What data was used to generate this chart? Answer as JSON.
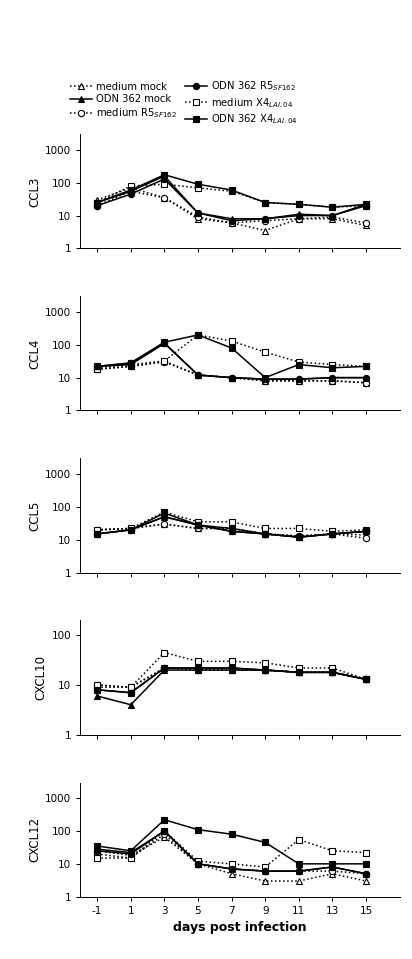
{
  "x": [
    -1,
    1,
    3,
    5,
    7,
    9,
    11,
    13,
    15
  ],
  "panels": [
    {
      "ylabel": "CCL3",
      "ylim": [
        1,
        3000
      ],
      "yticks": [
        1,
        10,
        100,
        1000
      ],
      "series": [
        {
          "linestyle": "dotted",
          "marker": "^",
          "filled": false,
          "y": [
            30,
            70,
            35,
            8,
            6,
            3.5,
            8,
            8,
            5
          ]
        },
        {
          "linestyle": "dotted",
          "marker": "o",
          "filled": false,
          "y": [
            20,
            55,
            35,
            9,
            6,
            7,
            8,
            9,
            6
          ]
        },
        {
          "linestyle": "dotted",
          "marker": "s",
          "filled": false,
          "y": [
            25,
            80,
            90,
            70,
            55,
            25,
            22,
            18,
            20
          ]
        },
        {
          "linestyle": "solid",
          "marker": "^",
          "filled": true,
          "y": [
            25,
            55,
            160,
            12,
            8,
            8,
            11,
            10,
            22
          ]
        },
        {
          "linestyle": "solid",
          "marker": "o",
          "filled": true,
          "y": [
            20,
            45,
            130,
            12,
            7,
            8,
            10,
            10,
            20
          ]
        },
        {
          "linestyle": "solid",
          "marker": "s",
          "filled": true,
          "y": [
            25,
            60,
            175,
            90,
            60,
            25,
            22,
            18,
            22
          ]
        }
      ]
    },
    {
      "ylabel": "CCL4",
      "ylim": [
        1,
        3000
      ],
      "yticks": [
        1,
        10,
        100,
        1000
      ],
      "series": [
        {
          "linestyle": "dotted",
          "marker": "^",
          "filled": false,
          "y": [
            20,
            25,
            32,
            12,
            10,
            8,
            8,
            8,
            7
          ]
        },
        {
          "linestyle": "dotted",
          "marker": "o",
          "filled": false,
          "y": [
            18,
            22,
            30,
            12,
            10,
            8,
            8,
            8,
            7
          ]
        },
        {
          "linestyle": "dotted",
          "marker": "s",
          "filled": false,
          "y": [
            18,
            22,
            32,
            200,
            130,
            60,
            30,
            25,
            22
          ]
        },
        {
          "linestyle": "solid",
          "marker": "^",
          "filled": true,
          "y": [
            22,
            25,
            110,
            12,
            10,
            9,
            9,
            10,
            10
          ]
        },
        {
          "linestyle": "solid",
          "marker": "o",
          "filled": true,
          "y": [
            22,
            28,
            115,
            12,
            10,
            9,
            9,
            10,
            10
          ]
        },
        {
          "linestyle": "solid",
          "marker": "s",
          "filled": true,
          "y": [
            22,
            28,
            120,
            200,
            80,
            10,
            25,
            20,
            22
          ]
        }
      ]
    },
    {
      "ylabel": "CCL5",
      "ylim": [
        1,
        3000
      ],
      "yticks": [
        1,
        10,
        100,
        1000
      ],
      "series": [
        {
          "linestyle": "dotted",
          "marker": "^",
          "filled": false,
          "y": [
            20,
            22,
            30,
            22,
            22,
            15,
            13,
            15,
            14
          ]
        },
        {
          "linestyle": "dotted",
          "marker": "o",
          "filled": false,
          "y": [
            20,
            22,
            30,
            22,
            22,
            15,
            13,
            15,
            11
          ]
        },
        {
          "linestyle": "dotted",
          "marker": "s",
          "filled": false,
          "y": [
            20,
            22,
            70,
            35,
            35,
            22,
            22,
            18,
            20
          ]
        },
        {
          "linestyle": "solid",
          "marker": "^",
          "filled": true,
          "y": [
            15,
            20,
            50,
            28,
            18,
            15,
            12,
            15,
            18
          ]
        },
        {
          "linestyle": "solid",
          "marker": "o",
          "filled": true,
          "y": [
            15,
            20,
            50,
            28,
            18,
            15,
            12,
            15,
            18
          ]
        },
        {
          "linestyle": "solid",
          "marker": "s",
          "filled": true,
          "y": [
            15,
            20,
            65,
            28,
            22,
            15,
            12,
            15,
            18
          ]
        }
      ]
    },
    {
      "ylabel": "CXCL10",
      "ylim": [
        1,
        200
      ],
      "yticks": [
        1,
        10,
        100
      ],
      "series": [
        {
          "linestyle": "dotted",
          "marker": "^",
          "filled": false,
          "y": [
            9,
            9,
            22,
            20,
            20,
            20,
            18,
            18,
            13
          ]
        },
        {
          "linestyle": "dotted",
          "marker": "o",
          "filled": false,
          "y": [
            10,
            9,
            22,
            20,
            20,
            20,
            18,
            18,
            13
          ]
        },
        {
          "linestyle": "dotted",
          "marker": "s",
          "filled": false,
          "y": [
            10,
            9,
            45,
            30,
            30,
            28,
            22,
            22,
            13
          ]
        },
        {
          "linestyle": "solid",
          "marker": "^",
          "filled": true,
          "y": [
            6,
            4,
            20,
            20,
            20,
            20,
            18,
            18,
            13
          ]
        },
        {
          "linestyle": "solid",
          "marker": "o",
          "filled": true,
          "y": [
            8,
            7,
            22,
            22,
            22,
            20,
            18,
            18,
            13
          ]
        },
        {
          "linestyle": "solid",
          "marker": "s",
          "filled": true,
          "y": [
            8,
            7,
            22,
            22,
            22,
            20,
            18,
            18,
            13
          ]
        }
      ]
    },
    {
      "ylabel": "CXCL12",
      "ylim": [
        1,
        3000
      ],
      "yticks": [
        1,
        10,
        100,
        1000
      ],
      "series": [
        {
          "linestyle": "dotted",
          "marker": "^",
          "filled": false,
          "y": [
            25,
            18,
            65,
            10,
            5,
            3,
            3,
            5,
            3
          ]
        },
        {
          "linestyle": "dotted",
          "marker": "o",
          "filled": false,
          "y": [
            20,
            15,
            80,
            10,
            7,
            6,
            6,
            6,
            5
          ]
        },
        {
          "linestyle": "dotted",
          "marker": "s",
          "filled": false,
          "y": [
            15,
            15,
            100,
            12,
            10,
            8,
            55,
            25,
            22
          ]
        },
        {
          "linestyle": "solid",
          "marker": "^",
          "filled": true,
          "y": [
            28,
            22,
            100,
            10,
            7,
            6,
            6,
            8,
            5
          ]
        },
        {
          "linestyle": "solid",
          "marker": "o",
          "filled": true,
          "y": [
            25,
            20,
            100,
            10,
            7,
            6,
            6,
            8,
            5
          ]
        },
        {
          "linestyle": "solid",
          "marker": "s",
          "filled": true,
          "y": [
            35,
            25,
            220,
            110,
            80,
            45,
            10,
            10,
            10
          ]
        }
      ]
    }
  ],
  "xlabel": "days post infection",
  "legend_labels_left": [
    "medium mock",
    "medium R5$_{SF162}$",
    "medium X4$_{LAI.04}$"
  ],
  "legend_labels_right": [
    "ODN 362 mock",
    "ODN 362 R5$_{SF162}$",
    "ODN 362 X4$_{LAI.04}$"
  ],
  "legend_markers_left": [
    "^",
    "o",
    "s"
  ],
  "legend_markers_right": [
    "^",
    "o",
    "s"
  ],
  "xticks": [
    -1,
    1,
    3,
    5,
    7,
    9,
    11,
    13,
    15
  ],
  "background_color": "white",
  "marker_size": 4.5,
  "linewidth": 1.1
}
